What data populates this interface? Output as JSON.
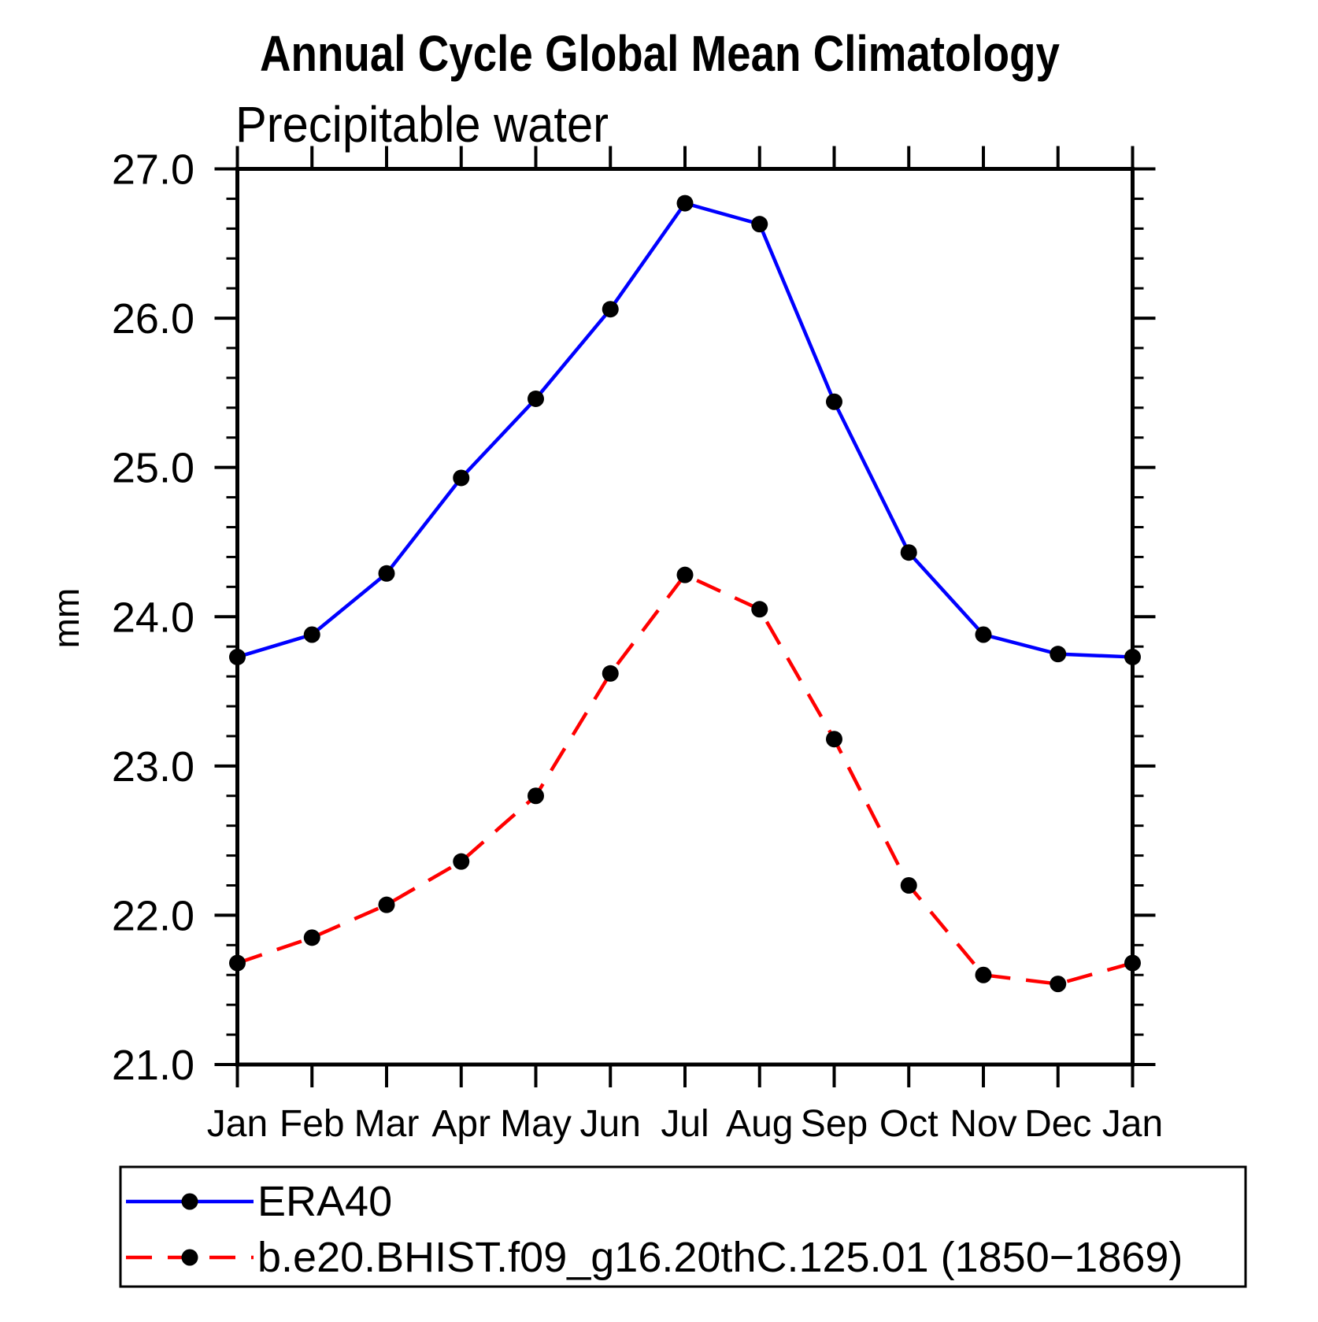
{
  "chart_data": {
    "type": "line",
    "title": "Annual Cycle Global Mean Climatology",
    "subtitle": "Precipitable water",
    "ylabel": "mm",
    "xlabel": "",
    "ylim": [
      21.0,
      27.0
    ],
    "ytick_step": 1.0,
    "ytick_minor_step": 0.2,
    "ytick_labels": [
      "21.0",
      "22.0",
      "23.0",
      "24.0",
      "25.0",
      "26.0",
      "27.0"
    ],
    "categories": [
      "Jan",
      "Feb",
      "Mar",
      "Apr",
      "May",
      "Jun",
      "Jul",
      "Aug",
      "Sep",
      "Oct",
      "Nov",
      "Dec",
      "Jan"
    ],
    "grid": false,
    "legend_position": "bottom-left",
    "axis_color": "#000000",
    "marker": {
      "shape": "circle",
      "color": "#000000"
    },
    "series": [
      {
        "name": "ERA40",
        "color": "#0000ff",
        "line_style": "solid",
        "values": [
          23.73,
          23.88,
          24.29,
          24.93,
          25.46,
          26.06,
          26.77,
          26.63,
          25.44,
          24.43,
          23.88,
          23.75,
          23.73
        ]
      },
      {
        "name": "b.e20.BHIST.f09_g16.20thC.125.01 (1850−1869)",
        "color": "#ff0000",
        "line_style": "dashed",
        "values": [
          21.68,
          21.85,
          22.07,
          22.36,
          22.8,
          23.62,
          24.28,
          24.05,
          23.18,
          22.2,
          21.6,
          21.54,
          21.68
        ]
      }
    ]
  }
}
